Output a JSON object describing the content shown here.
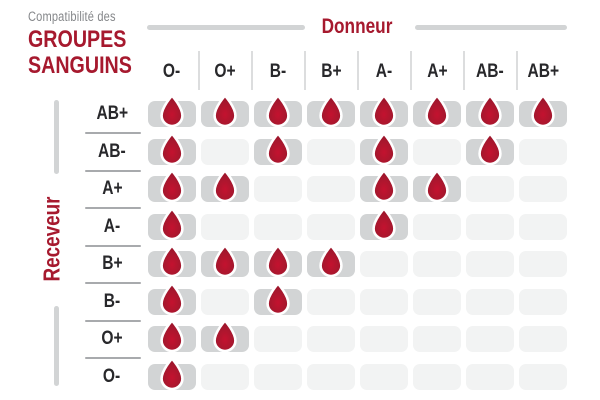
{
  "header": {
    "eyebrow": "Compatibilité des",
    "title_line1": "GROUPES",
    "title_line2": "SANGUINS"
  },
  "axes": {
    "donor_label": "Donneur",
    "receiver_label": "Receveur"
  },
  "icons": {
    "compatible_marker": "blood-drop-icon"
  },
  "colors": {
    "accent_red": "#A6192E",
    "drop_red_light": "#C4122F",
    "drop_red_dark": "#8E1126",
    "text_dark": "#28282B",
    "gray_text": "#85878A",
    "cell_filled": "#D2D4D5",
    "cell_empty": "#F2F3F3",
    "sep_gray": "#DCDDDE",
    "underline_gray": "#A8AAAD"
  },
  "chart_data": {
    "type": "heatmap",
    "title": "Compatibilité des groupes sanguins",
    "x_axis_label": "Donneur",
    "y_axis_label": "Receveur",
    "columns": [
      "O-",
      "O+",
      "B-",
      "B+",
      "A-",
      "A+",
      "AB-",
      "AB+"
    ],
    "rows": [
      "AB+",
      "AB-",
      "A+",
      "A-",
      "B+",
      "B-",
      "O+",
      "O-"
    ],
    "values": [
      [
        1,
        1,
        1,
        1,
        1,
        1,
        1,
        1
      ],
      [
        1,
        0,
        1,
        0,
        1,
        0,
        1,
        0
      ],
      [
        1,
        1,
        0,
        0,
        1,
        1,
        0,
        0
      ],
      [
        1,
        0,
        0,
        0,
        1,
        0,
        0,
        0
      ],
      [
        1,
        1,
        1,
        1,
        0,
        0,
        0,
        0
      ],
      [
        1,
        0,
        1,
        0,
        0,
        0,
        0,
        0
      ],
      [
        1,
        1,
        0,
        0,
        0,
        0,
        0,
        0
      ],
      [
        1,
        0,
        0,
        0,
        0,
        0,
        0,
        0
      ]
    ],
    "cell_semantics": {
      "1": "compatible (blood drop shown)",
      "0": "not compatible (empty cell)"
    },
    "legend_position": "none",
    "grid": "rounded-cell matrix"
  }
}
